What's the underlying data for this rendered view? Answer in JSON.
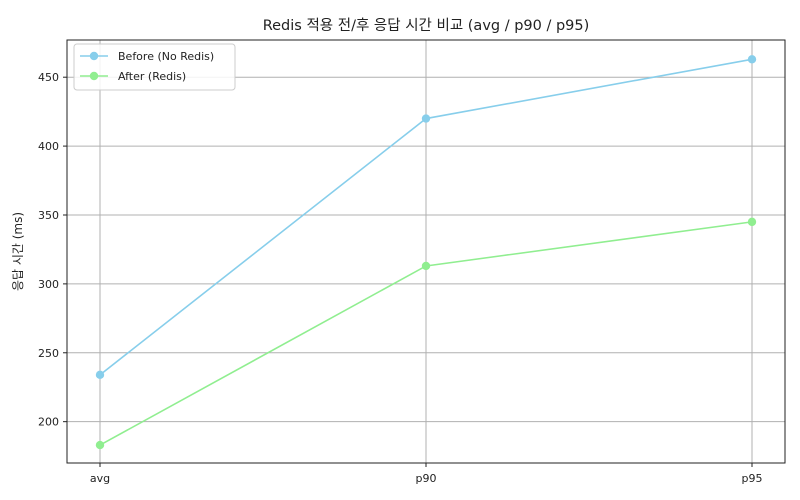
{
  "chart_data": {
    "type": "line",
    "title": "Redis 적용 전/후 응답 시간 비교 (avg / p90 / p95)",
    "xlabel": "",
    "ylabel": "응답 시간 (ms)",
    "categories": [
      "avg",
      "p90",
      "p95"
    ],
    "ylim": [
      170,
      477
    ],
    "yticks": [
      200,
      250,
      300,
      350,
      400,
      450
    ],
    "grid": true,
    "legend_position": "top-left",
    "series": [
      {
        "name": "Before (No Redis)",
        "color": "#87ceeb",
        "values": [
          234,
          420,
          463
        ]
      },
      {
        "name": "After (Redis)",
        "color": "#90ee90",
        "values": [
          183,
          313,
          345
        ]
      }
    ]
  }
}
